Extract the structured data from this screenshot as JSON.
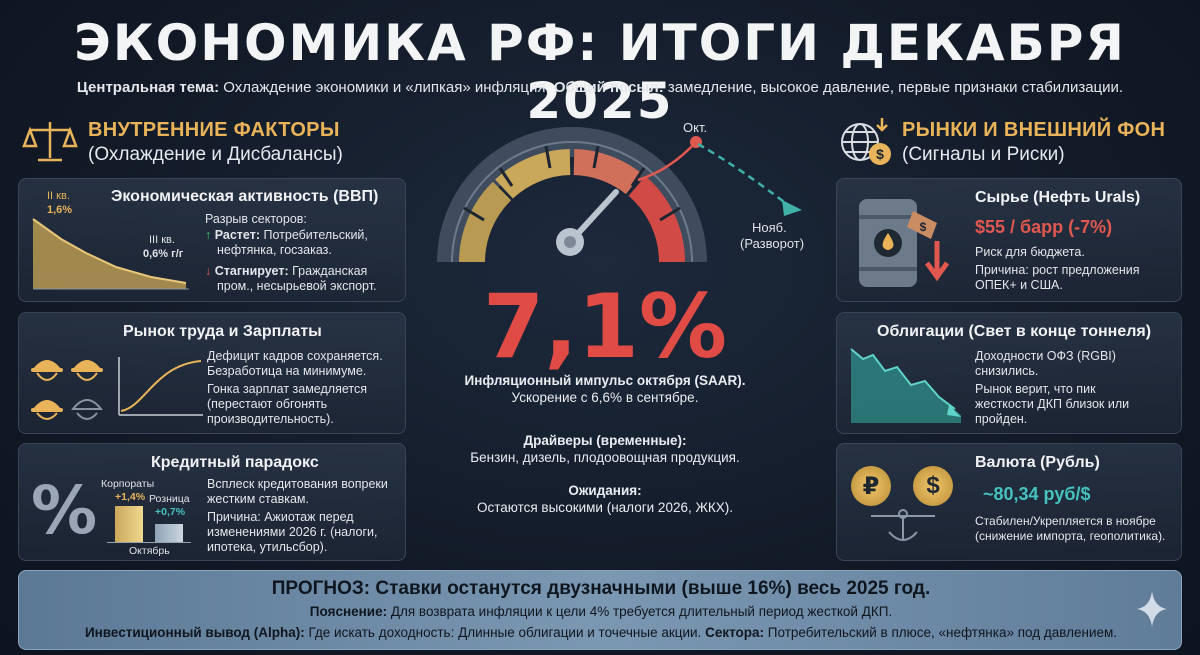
{
  "header": {
    "title": "ЭКОНОМИКА РФ: ИТОГИ ДЕКАБРЯ 2025",
    "theme_label": "Центральная тема:",
    "theme_text": "Охлаждение экономики и «липкая» инфляция.",
    "message_label": "Общий посыл:",
    "message_text": "замедление, высокое давление, первые признаки стабилизации."
  },
  "left_section": {
    "title": "ВНУТРЕННИЕ ФАКТОРЫ",
    "subtitle": "(Охлаждение и Дисбалансы)",
    "icon": "scales-icon"
  },
  "right_section": {
    "title": "РЫНКИ И ВНЕШНИЙ ФОН",
    "subtitle": "(Сигналы и Риски)",
    "icon": "globe-money-icon"
  },
  "gdp_card": {
    "title": "Экономическая активность (ВВП)",
    "q2_label": "II кв.",
    "q2_value": "1,6%",
    "q3_label": "III кв.",
    "q3_value": "0,6% г/г",
    "chart_data": {
      "type": "area",
      "x": [
        "II кв.",
        "III кв."
      ],
      "values": [
        1.6,
        0.6
      ]
    },
    "gap": "Разрыв секторов:",
    "grow_label": "Растет:",
    "grow_text_1": "Потребительский,",
    "grow_text_2": "нефтянка, госзаказ.",
    "stagnate_label": "Стагнирует:",
    "stagnate_text_1": "Гражданская",
    "stagnate_text_2": "пром., несырьевой экспорт."
  },
  "labor_card": {
    "title": "Рынок труда и Зарплаты",
    "line1": "Дефицит кадров сохраняется.",
    "line2": "Безработица на минимуме.",
    "line3": "Гонка зарплат замедляется",
    "line4": "(перестают обгонять",
    "line5": "производительность)."
  },
  "credit_card": {
    "title": "Кредитный парадокс",
    "corp_label": "Корпораты",
    "corp_value": "+1,4%",
    "retail_label": "Розница",
    "retail_value": "+0,7%",
    "month": "Октябрь",
    "chart_data": {
      "type": "bar",
      "categories": [
        "Корпораты",
        "Розница"
      ],
      "values": [
        1.4,
        0.7
      ]
    },
    "line1": "Всплеск кредитования вопреки",
    "line2": "жестким ставкам.",
    "line3": "Причина: Ажиотаж перед",
    "line4": "изменениями 2026 г. (налоги,",
    "line5": "ипотека, утильсбор)."
  },
  "inflation": {
    "oct_label": "Окт.",
    "nov_label": "Нояб.",
    "nov_sub": "(Разворот)",
    "value": "7,1%",
    "gauge_level": 0.72,
    "impulse": "Инфляционный импульс октября (SAAR).",
    "accel": "Ускорение с 6,6% в сентябре.",
    "drivers_title": "Драйверы (временные):",
    "drivers_text": "Бензин, дизель, плодоовощная продукция.",
    "expect_title": "Ожидания:",
    "expect_text": "Остаются высокими (налоги 2026, ЖКХ)."
  },
  "oil_card": {
    "title": "Сырье (Нефть Urals)",
    "price": "$55 / барр (-7%)",
    "risk": "Риск для бюджета.",
    "reason1": "Причина: рост предложения",
    "reason2": "ОПЕК+ и США."
  },
  "bonds_card": {
    "title": "Облигации (Свет в конце тоннеля)",
    "line1": "Доходности ОФЗ (RGBI)",
    "line2": "снизились.",
    "line3": "Рынок верит, что пик",
    "line4": "жесткости ДКП близок или",
    "line5": "пройден."
  },
  "fx_card": {
    "title": "Валюта (Рубль)",
    "rate": "~80,34 руб/$",
    "line1": "Стабилен/Укрепляется в ноябре",
    "line2": "(снижение импорта, геополитика).",
    "rub_symbol": "₽",
    "usd_symbol": "$"
  },
  "forecast": {
    "headline": "ПРОГНОЗ: Ставки останутся двузначными (выше 16%) весь 2025 год.",
    "expl_label": "Пояснение:",
    "expl_text": "Для возврата инфляции к цели 4% требуется длительный период жесткой ДКП.",
    "alpha_label": "Инвестиционный вывод (Alpha):",
    "alpha_text": "Где искать доходность: Длинные облигации и точечные акции.",
    "sectors_label": "Сектора:",
    "sectors_text": "Потребительский в плюсе, «нефтянка» под давлением."
  },
  "colors": {
    "accent": "#e9b35a",
    "red": "#e04b46",
    "green": "#45c26b",
    "teal": "#3fb1a8"
  }
}
